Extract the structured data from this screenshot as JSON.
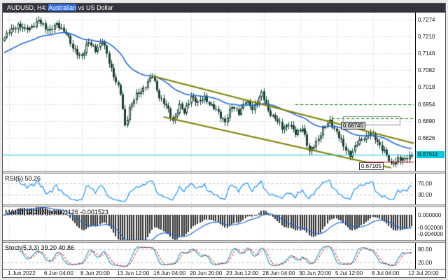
{
  "window": {
    "titlebar": {
      "pre": "AUDUSD, H4: ",
      "highlight": "Australian",
      "post": " vs US Dollar",
      "bg_color": "#33333b",
      "highlight_color": "#2e6bd6"
    }
  },
  "chart_data": {
    "type": "candlestick",
    "symbol": "AUDUSD",
    "timeframe": "H4",
    "pair_description": "Australian vs US Dollar",
    "y_axis": {
      "tick_labels": [
        "0.7274",
        "0.7210",
        "0.7146",
        "0.7082",
        "0.7018",
        "0.6954",
        "0.6890",
        "0.6826",
        "0.6761"
      ],
      "visible_range": [
        0.6701,
        0.73
      ]
    },
    "x_axis": {
      "labels": [
        "1 Jun 2022",
        "6 Jun 04:00",
        "8 Jun 20:00",
        "13 Jun 12:00",
        "16 Jun 04:00",
        "20 Jun 20:00",
        "23 Jun 12:00",
        "28 Jun 04:00",
        "30 Jun 20:00",
        "5 Jul 12:00",
        "8 Jul 04:00",
        "12 Jul 20:00"
      ],
      "first_gridline_bar": 2,
      "bars_per_gridline": 16,
      "total_bars": 180
    },
    "price_path": [
      [
        0,
        0.7205
      ],
      [
        3,
        0.7235
      ],
      [
        6,
        0.7255
      ],
      [
        9,
        0.7232
      ],
      [
        12,
        0.725
      ],
      [
        15,
        0.7268
      ],
      [
        18,
        0.7242
      ],
      [
        20,
        0.7236
      ],
      [
        23,
        0.7252
      ],
      [
        27,
        0.7228
      ],
      [
        30,
        0.716
      ],
      [
        34,
        0.7138
      ],
      [
        37,
        0.7185
      ],
      [
        40,
        0.7162
      ],
      [
        43,
        0.719
      ],
      [
        45,
        0.7142
      ],
      [
        48,
        0.7062
      ],
      [
        51,
        0.6992
      ],
      [
        53,
        0.6872
      ],
      [
        55,
        0.694
      ],
      [
        58,
        0.6985
      ],
      [
        61,
        0.7015
      ],
      [
        65,
        0.7058
      ],
      [
        68,
        0.6985
      ],
      [
        71,
        0.6945
      ],
      [
        74,
        0.689
      ],
      [
        77,
        0.6948
      ],
      [
        79,
        0.6918
      ],
      [
        82,
        0.6988
      ],
      [
        85,
        0.6955
      ],
      [
        88,
        0.6982
      ],
      [
        91,
        0.6945
      ],
      [
        94,
        0.692
      ],
      [
        97,
        0.6888
      ],
      [
        100,
        0.6942
      ],
      [
        103,
        0.6925
      ],
      [
        106,
        0.6962
      ],
      [
        109,
        0.6938
      ],
      [
        113,
        0.6992
      ],
      [
        116,
        0.693
      ],
      [
        119,
        0.6898
      ],
      [
        122,
        0.6862
      ],
      [
        125,
        0.6882
      ],
      [
        128,
        0.6838
      ],
      [
        131,
        0.6868
      ],
      [
        134,
        0.6768
      ],
      [
        137,
        0.6812
      ],
      [
        140,
        0.6858
      ],
      [
        143,
        0.6888
      ],
      [
        146,
        0.685
      ],
      [
        149,
        0.679
      ],
      [
        152,
        0.6764
      ],
      [
        155,
        0.6802
      ],
      [
        158,
        0.6828
      ],
      [
        161,
        0.6845
      ],
      [
        164,
        0.6808
      ],
      [
        167,
        0.6778
      ],
      [
        170,
        0.6718
      ],
      [
        173,
        0.6752
      ],
      [
        176,
        0.674
      ],
      [
        179,
        0.67611
      ]
    ],
    "last_close": 0.67611,
    "current_price_label": "0.67611",
    "moving_average": {
      "type": "ema",
      "period": 34,
      "seed": 0.7145,
      "color": "#1f6bd8"
    },
    "candle_colors": {
      "bull": "#ffffff",
      "bear": "#14402f",
      "outline": "#14402f"
    },
    "annotations": {
      "price_labels": [
        {
          "text": "0.68745",
          "price": 0.68745,
          "bar": 148,
          "bg": "#cfcfcf"
        },
        {
          "text": "0.67105",
          "price": 0.67105,
          "bar": 156,
          "bg": "#ffffff"
        }
      ],
      "channel": {
        "color": "#7f7f00",
        "upper": [
          [
            65,
            0.706
          ],
          [
            180,
            0.6805
          ]
        ],
        "lower": [
          [
            70,
            0.6905
          ],
          [
            170,
            0.6712
          ]
        ]
      },
      "hlines": [
        {
          "price": 0.6954,
          "from_bar": 128,
          "to_bar": 180,
          "color": "#008000",
          "dashed": true
        },
        {
          "price": 0.69,
          "from_bar": 144,
          "to_bar": 180,
          "color": "#008000",
          "dashed": true
        },
        {
          "price": 0.6735,
          "from_bar": 158,
          "to_bar": 180,
          "color": "#cc0000",
          "dashed": false
        }
      ],
      "range_box": {
        "from_bar": 149,
        "to_bar": 174,
        "top_price": 0.6908,
        "bottom_price": 0.6876,
        "color": "#8a8a8a"
      },
      "current_price_line_color": "#00c3d4"
    },
    "indicators": [
      {
        "id": "rsi",
        "label": "RSI(5) 50.26",
        "period": 5,
        "value": 50.26,
        "levels": [
          "70.00",
          "30.00"
        ],
        "level_values": [
          70,
          30
        ],
        "line_color": "#1e90ff",
        "range": [
          0,
          100
        ]
      },
      {
        "id": "macd",
        "label": "MACD(12,26,9) -0.001126 -0.001523",
        "values": [
          -0.001126,
          -0.001523
        ],
        "axis_labels": [
          "0.000000",
          "-0.002000",
          "-0.004000"
        ],
        "axis_values": [
          0,
          -0.002,
          -0.004
        ],
        "histogram_color": "#2b2b2b",
        "signal_color": "#1f6bd8",
        "range": [
          0.0012,
          -0.004
        ]
      },
      {
        "id": "stoch",
        "label": "Stoch(5,3,3) 39.20 40.86",
        "values": [
          39.2,
          40.86
        ],
        "levels": [
          "80.00",
          "20.00"
        ],
        "level_values": [
          80,
          20
        ],
        "main_color": "#2a9fc4",
        "signal_color": "#e00000",
        "range": [
          0,
          100
        ]
      }
    ]
  }
}
